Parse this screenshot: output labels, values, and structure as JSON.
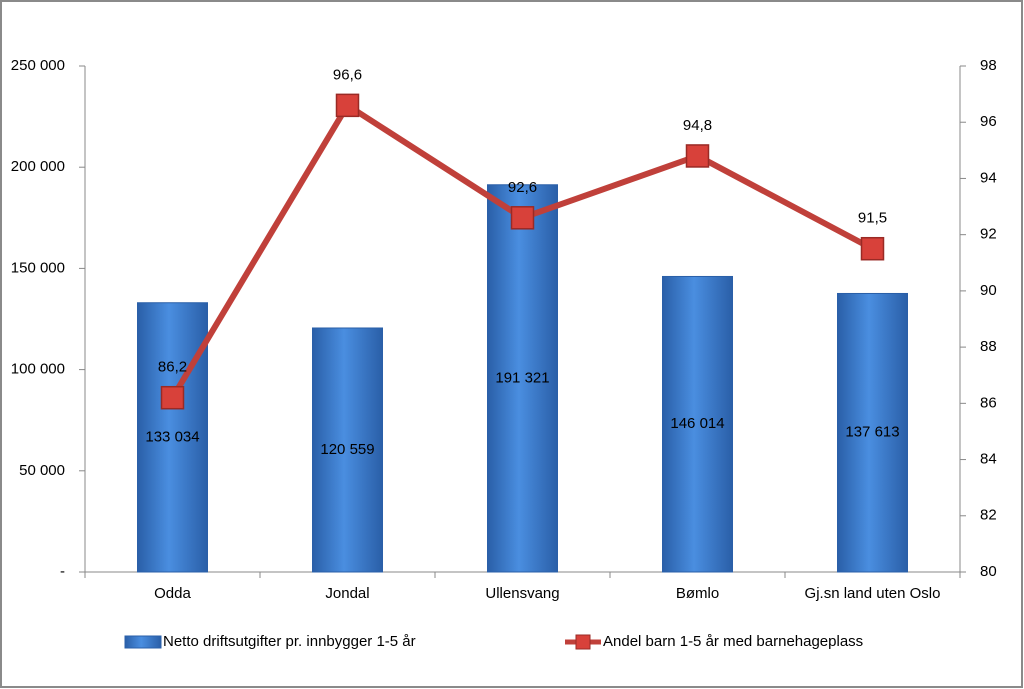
{
  "chart_data": {
    "type": "combo",
    "categories": [
      "Odda",
      "Jondal",
      "Ullensvang",
      "Bømlo",
      "Gj.sn land uten Oslo"
    ],
    "series": [
      {
        "name": "Netto driftsutgifter pr. innbygger 1-5 år",
        "type": "bar",
        "color": "#3c7dd0",
        "values": [
          133034,
          120559,
          191321,
          146014,
          137613
        ],
        "value_labels": [
          "133 034",
          "120 559",
          "191 321",
          "146 014",
          "137 613"
        ]
      },
      {
        "name": "Andel barn 1-5 år med barnehageplass",
        "type": "line",
        "axis": "y2",
        "color": "#c0403a",
        "values": [
          86.2,
          96.6,
          92.6,
          94.8,
          91.5
        ],
        "value_labels": [
          "86,2",
          "96,6",
          "92,6",
          "94,8",
          "91,5"
        ]
      }
    ],
    "ylim": [
      0,
      250000
    ],
    "yticks": [
      {
        "value": 0,
        "label": "-"
      },
      {
        "value": 50000,
        "label": "50 000"
      },
      {
        "value": 100000,
        "label": "100 000"
      },
      {
        "value": 150000,
        "label": "150 000"
      },
      {
        "value": 200000,
        "label": "200 000"
      },
      {
        "value": 250000,
        "label": "250 000"
      }
    ],
    "y2lim": [
      80,
      98
    ],
    "y2ticks": [
      80,
      82,
      84,
      86,
      88,
      90,
      92,
      94,
      96,
      98
    ],
    "grid": false,
    "legend": "bottom"
  }
}
